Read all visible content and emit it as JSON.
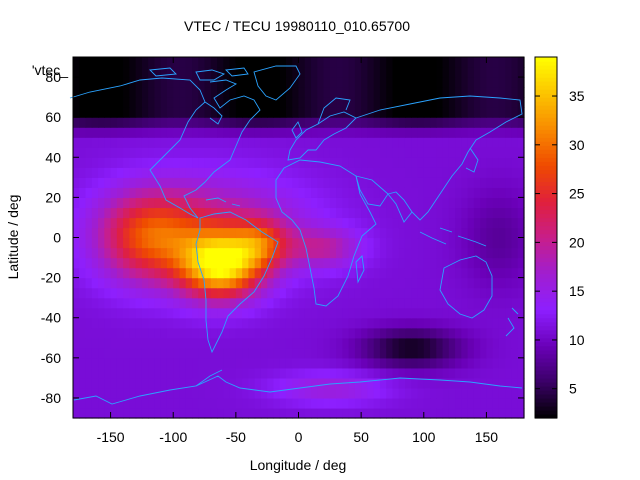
{
  "chart_data": {
    "type": "heatmap",
    "title": "VTEC / TECU 19980110_010.65700",
    "xlabel": "Longitude / deg",
    "ylabel": "Latitude / deg",
    "key_label": "'vtec_",
    "xlim": [
      -180,
      180
    ],
    "ylim": [
      -90,
      90
    ],
    "xticks": [
      -150,
      -100,
      -50,
      0,
      50,
      100,
      150
    ],
    "yticks": [
      -80,
      -60,
      -40,
      -20,
      0,
      20,
      40,
      60,
      80
    ],
    "colorbar": {
      "range": [
        2,
        39
      ],
      "ticks": [
        5,
        10,
        15,
        20,
        25,
        30,
        35
      ],
      "palette": [
        "#000000",
        "#3a0066",
        "#6a00b8",
        "#8d1fff",
        "#a01ed0",
        "#c81e8a",
        "#e0203c",
        "#ef4a00",
        "#f88a00",
        "#fcc400",
        "#ffff00"
      ]
    },
    "field_features": {
      "background_tecu": 11,
      "peaks": [
        {
          "lon": -62,
          "lat": -14,
          "tecu": 38
        },
        {
          "lon": -30,
          "lat": -3,
          "tecu": 33
        },
        {
          "lon": -120,
          "lat": 0,
          "tecu": 26
        },
        {
          "lon": 25,
          "lat": -75,
          "tecu": 19
        }
      ],
      "lows": [
        {
          "lat_band": [
            55,
            90
          ],
          "tecu": 3
        },
        {
          "lon": 90,
          "lat": -55,
          "tecu": 7
        }
      ]
    }
  }
}
